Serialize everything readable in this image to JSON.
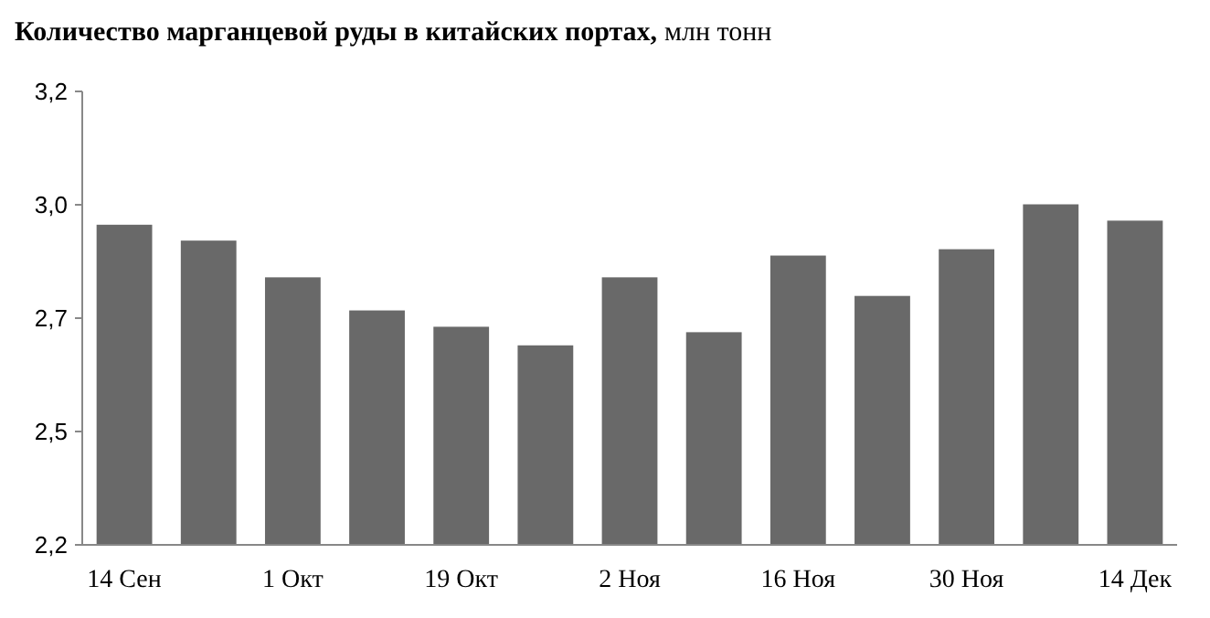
{
  "chart_data": {
    "type": "bar",
    "title": "Количество марганцевой руды в китайских портах,",
    "subtitle": "млн тонн",
    "categories": [
      "14 Сен",
      null,
      "1 Окт",
      null,
      "19 Окт",
      null,
      "2 Ноя",
      null,
      "16 Ноя",
      null,
      "30 Ноя",
      null,
      "14 Дек"
    ],
    "values": [
      2.906,
      2.871,
      2.79,
      2.717,
      2.681,
      2.64,
      2.79,
      2.669,
      2.838,
      2.749,
      2.852,
      2.951,
      2.915
    ],
    "color": "#696969",
    "ylim": [
      2.2,
      3.2
    ],
    "yticks": [
      {
        "value": 2.2,
        "label": "2,2"
      },
      {
        "value": 2.45,
        "label": "2,5"
      },
      {
        "value": 2.7,
        "label": "2,7"
      },
      {
        "value": 2.95,
        "label": "3,0"
      },
      {
        "value": 3.2,
        "label": "3,2"
      }
    ],
    "grid": false
  }
}
